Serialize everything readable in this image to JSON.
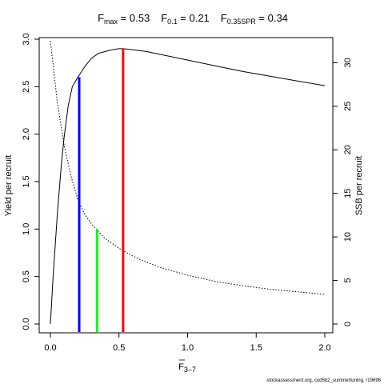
{
  "title": {
    "fmax": {
      "base": "F",
      "sub": "max",
      "eq": " = ",
      "value": "0.53"
    },
    "f01": {
      "base": "F",
      "sub": "0.1",
      "eq": " = ",
      "value": "0.21"
    },
    "f035": {
      "base": "F",
      "sub": "0.35SPR",
      "eq": " = ",
      "value": "0.34"
    }
  },
  "xlabel": {
    "base": "F",
    "sub": "3–7"
  },
  "footer": "stockassessment.org, cod5b2_summertuning, r19696",
  "chart_data": {
    "type": "line",
    "xlabel": "F̅3–7",
    "ylabel_left": "Yield per recruit",
    "ylabel_right": "SSB per recruit",
    "xlim": [
      0,
      2.0
    ],
    "ylim_left": [
      0,
      3.0
    ],
    "ylim_right": [
      0,
      32.7
    ],
    "xticks": [
      "0.0",
      "0.5",
      "1.0",
      "1.5",
      "2.0"
    ],
    "yticks_left": [
      "0.0",
      "0.5",
      "1.0",
      "1.5",
      "2.0",
      "2.5",
      "3.0"
    ],
    "yticks_right": [
      "0",
      "5",
      "10",
      "15",
      "20",
      "25",
      "30"
    ],
    "series": [
      {
        "name": "Yield per recruit",
        "axis": "left",
        "style": "solid",
        "x": [
          0,
          0.02,
          0.05,
          0.08,
          0.1,
          0.13,
          0.16,
          0.2,
          0.25,
          0.3,
          0.35,
          0.4,
          0.45,
          0.5,
          0.53,
          0.6,
          0.7,
          0.8,
          0.9,
          1.0,
          1.2,
          1.4,
          1.6,
          1.8,
          2.0
        ],
        "y": [
          0,
          0.5,
          1.15,
          1.68,
          1.97,
          2.3,
          2.5,
          2.6,
          2.71,
          2.8,
          2.85,
          2.87,
          2.89,
          2.9,
          2.9,
          2.89,
          2.87,
          2.84,
          2.81,
          2.78,
          2.72,
          2.66,
          2.61,
          2.56,
          2.51
        ]
      },
      {
        "name": "SSB per recruit",
        "axis": "right",
        "style": "dotted",
        "x": [
          0,
          0.05,
          0.1,
          0.15,
          0.2,
          0.25,
          0.3,
          0.35,
          0.4,
          0.5,
          0.6,
          0.7,
          0.8,
          1.0,
          1.2,
          1.4,
          1.6,
          1.8,
          2.0
        ],
        "y": [
          32.5,
          25.5,
          20.5,
          17.0,
          14.3,
          12.6,
          11.5,
          10.6,
          9.8,
          8.7,
          7.8,
          7.1,
          6.5,
          5.6,
          4.9,
          4.4,
          4.0,
          3.7,
          3.4
        ]
      }
    ],
    "reference_lines": [
      {
        "label": "F0.1",
        "x": 0.21,
        "y": 2.6,
        "color": "#0000ff"
      },
      {
        "label": "F0.35SPR",
        "x": 0.34,
        "y": 1.0,
        "color": "#00ff00"
      },
      {
        "label": "Fmax",
        "x": 0.53,
        "y": 2.9,
        "color": "#ff0000"
      }
    ]
  }
}
